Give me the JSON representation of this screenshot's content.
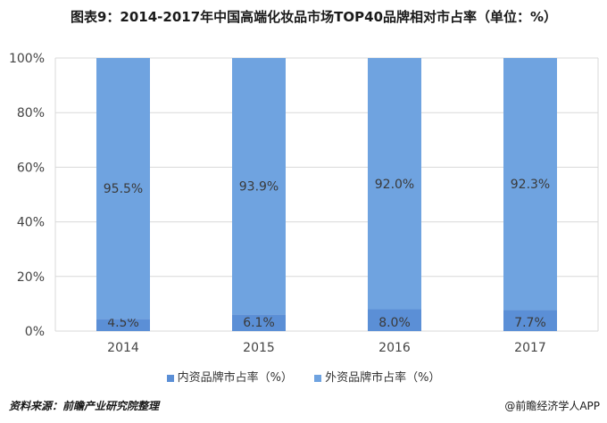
{
  "title": "图表9：2014-2017年中国高端化妆品市场TOP40品牌相对市占率（单位：%）",
  "footer": {
    "source": "资料来源：前瞻产业研究院整理",
    "brand": "@前瞻经济学人APP"
  },
  "colors": {
    "domestic": "#5b8fd6",
    "foreign": "#6fa3e0",
    "grid": "#d9d9d9",
    "axis_text": "#444444",
    "label_text": "#3a3a3a"
  },
  "chart_data": {
    "type": "bar",
    "stacked": true,
    "categories": [
      "2014",
      "2015",
      "2016",
      "2017"
    ],
    "series": [
      {
        "name": "内资品牌市占率（%）",
        "values": [
          4.5,
          6.1,
          8.0,
          7.7
        ],
        "labels": [
          "4.5%",
          "6.1%",
          "8.0%",
          "7.7%"
        ]
      },
      {
        "name": "外资品牌市占率（%）",
        "values": [
          95.5,
          93.9,
          92.0,
          92.3
        ],
        "labels": [
          "95.5%",
          "93.9%",
          "92.0%",
          "92.3%"
        ]
      }
    ],
    "y_ticks": [
      "0%",
      "20%",
      "40%",
      "60%",
      "80%",
      "100%"
    ],
    "ylim": [
      0,
      100
    ],
    "grid": true,
    "legend_position": "bottom"
  }
}
